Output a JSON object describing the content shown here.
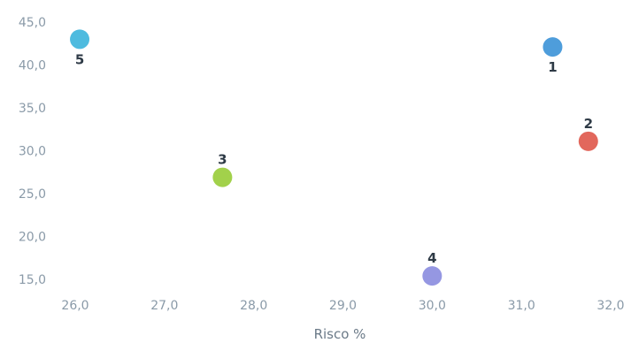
{
  "chart_data": {
    "type": "scatter",
    "title": "",
    "xlabel": "Risco %",
    "ylabel": "",
    "xlim": [
      26.0,
      32.0
    ],
    "ylim": [
      15.0,
      45.0
    ],
    "x_ticks": [
      "26,0",
      "27,0",
      "28,0",
      "29,0",
      "30,0",
      "31,0",
      "32,0"
    ],
    "y_ticks": [
      "15,0",
      "20,0",
      "25,0",
      "30,0",
      "35,0",
      "40,0",
      "45,0"
    ],
    "grid": false,
    "legend": "none",
    "points": [
      {
        "label": "1",
        "x": 31.35,
        "y": 42.1,
        "color": "#3f95d8",
        "label_pos": "below"
      },
      {
        "label": "2",
        "x": 31.75,
        "y": 31.1,
        "color": "#e05a4e",
        "label_pos": "above"
      },
      {
        "label": "3",
        "x": 27.65,
        "y": 26.9,
        "color": "#9acd3c",
        "label_pos": "above"
      },
      {
        "label": "4",
        "x": 30.0,
        "y": 15.4,
        "color": "#8c8ee0",
        "label_pos": "above"
      },
      {
        "label": "5",
        "x": 26.05,
        "y": 43.0,
        "color": "#3fb5dc",
        "label_pos": "below"
      }
    ]
  }
}
